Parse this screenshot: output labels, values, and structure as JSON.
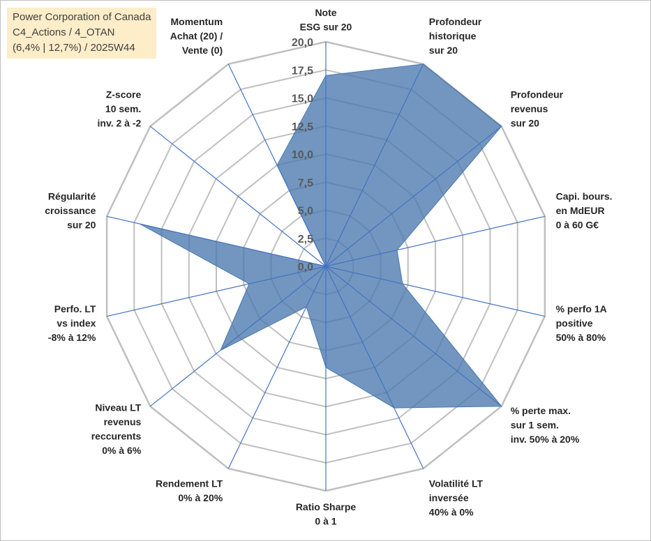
{
  "title": {
    "line1": "Power Corporation of Canada",
    "line2": "C4_Actions / 4_OTAN",
    "line3": "(6,4% | 12,7%) / 2025W44"
  },
  "colors": {
    "fill": "#4a78ad",
    "stroke": "#4472c4",
    "grid": "#bfbfbf",
    "title_bg": "#fdedc8"
  },
  "chart_data": {
    "type": "radar",
    "title": "Power Corporation of Canada",
    "range": [
      0,
      20
    ],
    "tick_step": 2.5,
    "tick_labels": [
      "0,0",
      "2,5",
      "5,0",
      "7,5",
      "10,0",
      "12,5",
      "15,0",
      "17,5",
      "20,0"
    ],
    "axes": [
      {
        "label": [
          "Note",
          "ESG sur 20"
        ],
        "value": 17
      },
      {
        "label": [
          "Profondeur",
          "historique",
          "sur 20"
        ],
        "value": 20
      },
      {
        "label": [
          "Profondeur",
          "revenus",
          "sur 20"
        ],
        "value": 20
      },
      {
        "label": [
          "Capi. bours.",
          "en MdEUR",
          "0 à 60 G€"
        ],
        "value": 6.5
      },
      {
        "label": [
          "% perfo 1A",
          "positive",
          "50% à 80%"
        ],
        "value": 7
      },
      {
        "label": [
          "% perte max.",
          "sur 1 sem.",
          "inv. 50% à 20%"
        ],
        "value": 20
      },
      {
        "label": [
          "Volatilité LT",
          "inversée",
          "40% à 0%"
        ],
        "value": 14
      },
      {
        "label": [
          "Ratio Sharpe",
          "0 à 1"
        ],
        "value": 9
      },
      {
        "label": [
          "Rendement LT",
          "0% à 20%"
        ],
        "value": 4
      },
      {
        "label": [
          "Niveau LT",
          "revenus",
          "reccurents",
          "0% à 6%"
        ],
        "value": 12
      },
      {
        "label": [
          "Perfo. LT",
          "vs index",
          "-8% à 12%"
        ],
        "value": 7
      },
      {
        "label": [
          "Régularité",
          "croissance",
          "sur 20"
        ],
        "value": 17
      },
      {
        "label": [
          "Z-score",
          "10 sem.",
          "inv. 2 à -2"
        ],
        "value": 0
      },
      {
        "label": [
          "Momentum",
          "Achat (20) /",
          "Vente (0)"
        ],
        "value": 10
      }
    ]
  }
}
